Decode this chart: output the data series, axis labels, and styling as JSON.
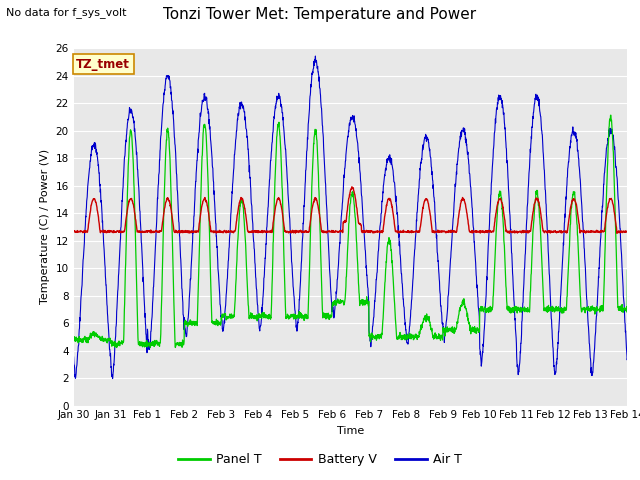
{
  "title": "Tonzi Tower Met: Temperature and Power",
  "subtitle": "No data for f_sys_volt",
  "xlabel": "Time",
  "ylabel": "Temperature (C) / Power (V)",
  "ylim": [
    0,
    26
  ],
  "yticks": [
    0,
    2,
    4,
    6,
    8,
    10,
    12,
    14,
    16,
    18,
    20,
    22,
    24,
    26
  ],
  "xtick_labels": [
    "Jan 30",
    "Jan 31",
    "Feb 1",
    "Feb 2",
    "Feb 3",
    "Feb 4",
    "Feb 5",
    "Feb 6",
    "Feb 7",
    "Feb 8",
    "Feb 9",
    "Feb 10",
    "Feb 11",
    "Feb 12",
    "Feb 13",
    "Feb 14"
  ],
  "legend_entries": [
    "Panel T",
    "Battery V",
    "Air T"
  ],
  "panel_t_color": "#00cc00",
  "battery_v_color": "#cc0000",
  "air_t_color": "#0000cc",
  "fig_bg_color": "#ffffff",
  "plot_bg_color": "#e8e8e8",
  "grid_color": "#ffffff",
  "annotation_text": "TZ_tmet",
  "annotation_bg": "#ffffcc",
  "annotation_border": "#cc8800",
  "annotation_text_color": "#990000"
}
